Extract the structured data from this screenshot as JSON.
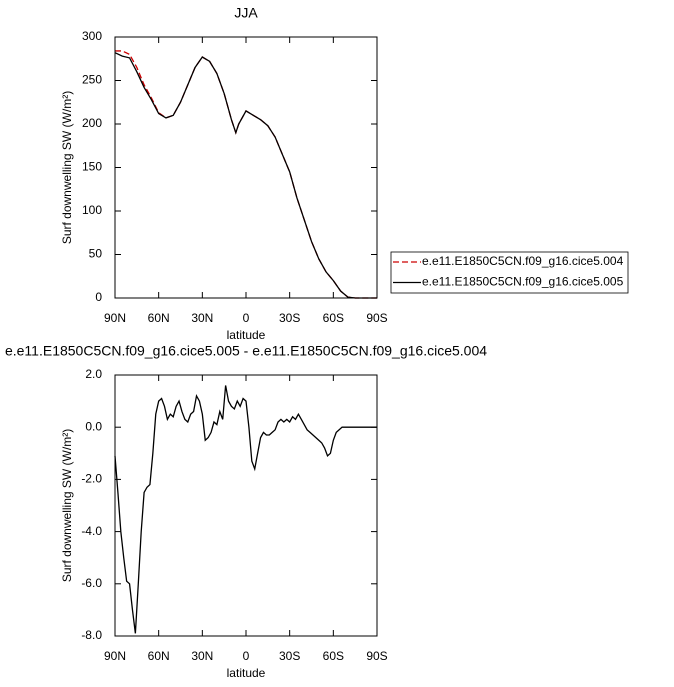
{
  "chart_data": [
    {
      "type": "line",
      "title": "JJA",
      "xlabel": "latitude",
      "ylabel": "Surf downwelling SW (W/m²)",
      "x": [
        90,
        85,
        80,
        75,
        70,
        65,
        60,
        55,
        50,
        45,
        40,
        35,
        30,
        25,
        20,
        15,
        10,
        7,
        5,
        0,
        -5,
        -10,
        -15,
        -20,
        -25,
        -30,
        -35,
        -40,
        -45,
        -50,
        -55,
        -60,
        -65,
        -70,
        -75,
        -80,
        -85,
        -90
      ],
      "series": [
        {
          "name": "e.e11.E1850C5CN.f09_g16.cice5.004",
          "color": "#cc0000",
          "dash": "dashed",
          "values": [
            284,
            284,
            280,
            265,
            245,
            230,
            213,
            207,
            210,
            225,
            245,
            265,
            277,
            272,
            258,
            235,
            205,
            190,
            200,
            215,
            210,
            205,
            198,
            185,
            165,
            145,
            115,
            90,
            65,
            45,
            30,
            20,
            8,
            1,
            0,
            0,
            0,
            0
          ]
        },
        {
          "name": "e.e11.E1850C5CN.f09_g16.cice5.005",
          "color": "#000000",
          "dash": "solid",
          "values": [
            282,
            278,
            276,
            260,
            242,
            228,
            212,
            207,
            210,
            225,
            245,
            265,
            277,
            272,
            258,
            235,
            205,
            190,
            200,
            215,
            210,
            205,
            198,
            185,
            165,
            145,
            115,
            90,
            65,
            45,
            30,
            20,
            8,
            1,
            0,
            0,
            0,
            0
          ]
        }
      ],
      "xlim": [
        90,
        -90
      ],
      "xticks": [
        {
          "value": 90,
          "label": "90N"
        },
        {
          "value": 60,
          "label": "60N"
        },
        {
          "value": 30,
          "label": "30N"
        },
        0,
        {
          "value": -30,
          "label": "30S"
        },
        {
          "value": -60,
          "label": "60S"
        },
        {
          "value": -90,
          "label": "90S"
        }
      ],
      "ylim": [
        0,
        300
      ],
      "yticks": [
        0,
        50,
        100,
        150,
        200,
        250,
        300
      ],
      "legend": "right"
    },
    {
      "type": "line",
      "title": "e.e11.E1850C5CN.f09_g16.cice5.005 - e.e11.E1850C5CN.f09_g16.cice5.004",
      "xlabel": "latitude",
      "ylabel": "Surf downwelling SW (W/m²)",
      "x": [
        90,
        88,
        86,
        84,
        82,
        80,
        78,
        76,
        74,
        72,
        70,
        68,
        66,
        64,
        62,
        60,
        58,
        56,
        54,
        52,
        50,
        48,
        46,
        44,
        42,
        40,
        38,
        36,
        34,
        32,
        30,
        28,
        26,
        24,
        22,
        20,
        18,
        16,
        14,
        12,
        10,
        8,
        6,
        4,
        2,
        0,
        -2,
        -4,
        -6,
        -8,
        -10,
        -12,
        -14,
        -16,
        -18,
        -20,
        -22,
        -24,
        -26,
        -28,
        -30,
        -32,
        -34,
        -36,
        -38,
        -40,
        -42,
        -44,
        -46,
        -48,
        -50,
        -52,
        -54,
        -56,
        -58,
        -60,
        -62,
        -66,
        -70,
        -75,
        -80,
        -85,
        -90
      ],
      "series": [
        {
          "color": "#000000",
          "dash": "solid",
          "values": [
            -1.1,
            -2.5,
            -4.0,
            -5.0,
            -5.9,
            -6.0,
            -7.0,
            -7.9,
            -6.0,
            -4.0,
            -2.5,
            -2.3,
            -2.2,
            -1.0,
            0.5,
            1.0,
            1.1,
            0.8,
            0.3,
            0.5,
            0.4,
            0.8,
            1.0,
            0.6,
            0.3,
            0.2,
            0.5,
            0.6,
            1.2,
            1.0,
            0.5,
            -0.5,
            -0.4,
            -0.2,
            0.2,
            0.1,
            0.6,
            0.3,
            1.6,
            1.0,
            0.8,
            0.7,
            1.0,
            0.8,
            1.1,
            1.0,
            0.0,
            -1.3,
            -1.6,
            -1.0,
            -0.4,
            -0.2,
            -0.3,
            -0.3,
            -0.2,
            -0.1,
            0.2,
            0.3,
            0.2,
            0.3,
            0.2,
            0.4,
            0.3,
            0.5,
            0.3,
            0.1,
            -0.1,
            -0.2,
            -0.3,
            -0.4,
            -0.5,
            -0.6,
            -0.8,
            -1.1,
            -1.0,
            -0.5,
            -0.2,
            0.0,
            0.0,
            0.0,
            0.0,
            0.0,
            0.0
          ]
        }
      ],
      "xlim": [
        90,
        -90
      ],
      "xticks": [
        {
          "value": 90,
          "label": "90N"
        },
        {
          "value": 60,
          "label": "60N"
        },
        {
          "value": 30,
          "label": "30N"
        },
        0,
        {
          "value": -30,
          "label": "30S"
        },
        {
          "value": -60,
          "label": "60S"
        },
        {
          "value": -90,
          "label": "90S"
        }
      ],
      "ylim": [
        -8,
        2
      ],
      "yticks": [
        {
          "value": -8,
          "label": "-8.0"
        },
        {
          "value": -6,
          "label": "-6.0"
        },
        {
          "value": -4,
          "label": "-4.0"
        },
        {
          "value": -2,
          "label": "-2.0"
        },
        {
          "value": 0,
          "label": "0.0"
        },
        {
          "value": 2,
          "label": "2.0"
        }
      ]
    }
  ]
}
